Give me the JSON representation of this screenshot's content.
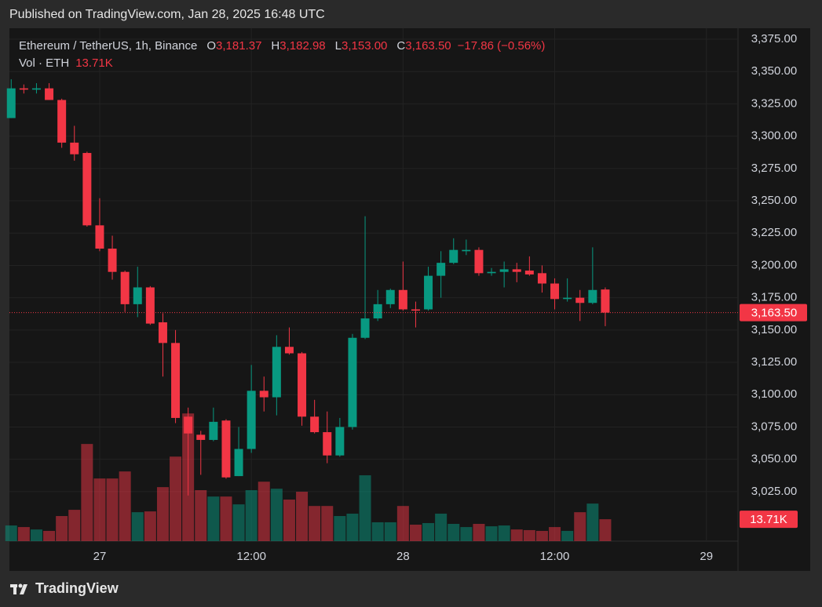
{
  "published": "Published on TradingView.com, Jan 28, 2025 16:48 UTC",
  "brand": "TradingView",
  "chart_data": {
    "type": "candlestick",
    "title": "Ethereum / TetherUS, 1h, Binance",
    "ohlc_legend": [
      {
        "key": "O",
        "value": "3,181.37"
      },
      {
        "key": "H",
        "value": "3,182.98"
      },
      {
        "key": "L",
        "value": "3,153.00"
      },
      {
        "key": "C",
        "value": "3,163.50"
      }
    ],
    "change": "−17.86 (−0.56%)",
    "volume_title": "Vol · ETH",
    "volume_label": "13.71K",
    "last_price_label": "3,163.50",
    "up_color": "#089981",
    "down_color": "#f23645",
    "grid": true,
    "x": [
      -7,
      -6,
      -5,
      -4,
      -3,
      -2,
      -1,
      0,
      1,
      2,
      3,
      4,
      5,
      6,
      7,
      8,
      9,
      10,
      11,
      12,
      13,
      14,
      15,
      16,
      17,
      18,
      19,
      20,
      21,
      22,
      23,
      24,
      25,
      26,
      27,
      28,
      29,
      30,
      31,
      32,
      33,
      34,
      35,
      36,
      37,
      38,
      39,
      40
    ],
    "open": [
      3314,
      3337,
      3336,
      3337,
      3328,
      3295,
      3287,
      3231,
      3213,
      3195,
      3170,
      3183,
      3156,
      3140,
      3083,
      3069,
      3065,
      3080,
      3037,
      3058,
      3103,
      3098,
      3137,
      3132,
      3083,
      3071,
      3053,
      3075,
      3144,
      3159,
      3170,
      3181,
      3166,
      3166,
      3192,
      3202,
      3211,
      3212,
      3194,
      3195,
      3197,
      3196,
      3194,
      3186,
      3174,
      3175,
      3171,
      3181.37
    ],
    "high": [
      3344,
      3340,
      3341,
      3341,
      3329,
      3308,
      3288,
      3252,
      3223,
      3196,
      3199,
      3184,
      3163,
      3150,
      3090,
      3072,
      3090,
      3081,
      3075,
      3123,
      3114,
      3146,
      3152,
      3133,
      3096,
      3087,
      3082,
      3147,
      3238,
      3181,
      3182,
      3203,
      3172,
      3199,
      3211,
      3221,
      3220,
      3214,
      3198,
      3203,
      3202,
      3207,
      3200,
      3190,
      3190,
      3181,
      3214,
      3182.98
    ],
    "low": [
      3314,
      3333,
      3333,
      3328,
      3291,
      3281,
      3230,
      3211,
      3189,
      3164,
      3160,
      3154,
      3114,
      3078,
      3022,
      3038,
      3064,
      3035,
      3037,
      3055,
      3087,
      3084,
      3131,
      3076,
      3070,
      3047,
      3052,
      3073,
      3143,
      3157,
      3167,
      3165,
      3152,
      3165,
      3175,
      3201,
      3208,
      3192,
      3192,
      3183,
      3187,
      3192,
      3179,
      3166,
      3172,
      3157,
      3170,
      3153
    ],
    "close": [
      3337,
      3336,
      3337,
      3328,
      3295,
      3286,
      3231,
      3213,
      3195,
      3170,
      3183,
      3155,
      3140,
      3082,
      3070,
      3065,
      3079,
      3036,
      3058,
      3103,
      3098,
      3137,
      3132,
      3083,
      3071,
      3053,
      3075,
      3144,
      3159,
      3170,
      3181,
      3166,
      3165,
      3192,
      3202,
      3212,
      3212,
      3194,
      3195,
      3197,
      3195,
      3193,
      3186,
      3174,
      3175,
      3171,
      3181,
      3163.5
    ],
    "volume": [
      9800,
      8800,
      7300,
      6400,
      15700,
      19600,
      60800,
      39200,
      39200,
      43600,
      18100,
      18600,
      33800,
      52900,
      79900,
      31900,
      27900,
      27900,
      23000,
      31900,
      37200,
      32800,
      26000,
      30900,
      22000,
      22000,
      15700,
      17200,
      41200,
      11800,
      11800,
      22000,
      10300,
      11300,
      17200,
      10800,
      8800,
      10800,
      9300,
      9800,
      7300,
      6900,
      6400,
      8800,
      6400,
      18100,
      23500,
      13710
    ],
    "volume_ylim": [
      0,
      80000
    ],
    "xlim": [
      -7.14,
      50.5
    ],
    "xticks": [
      {
        "value": 0,
        "label": "27"
      },
      {
        "value": 12,
        "label": "12:00"
      },
      {
        "value": 24,
        "label": "28"
      },
      {
        "value": 36,
        "label": "12:00"
      },
      {
        "value": 48,
        "label": "29"
      }
    ],
    "ylim": [
      2986.7,
      3383.5
    ],
    "yticks": [
      {
        "value": 3025,
        "label": "3,025.00"
      },
      {
        "value": 3050,
        "label": "3,050.00"
      },
      {
        "value": 3075,
        "label": "3,075.00"
      },
      {
        "value": 3100,
        "label": "3,100.00"
      },
      {
        "value": 3125,
        "label": "3,125.00"
      },
      {
        "value": 3150,
        "label": "3,150.00"
      },
      {
        "value": 3175,
        "label": "3,175.00"
      },
      {
        "value": 3200,
        "label": "3,200.00"
      },
      {
        "value": 3225,
        "label": "3,225.00"
      },
      {
        "value": 3250,
        "label": "3,250.00"
      },
      {
        "value": 3275,
        "label": "3,275.00"
      },
      {
        "value": 3300,
        "label": "3,300.00"
      },
      {
        "value": 3325,
        "label": "3,325.00"
      },
      {
        "value": 3350,
        "label": "3,350.00"
      },
      {
        "value": 3375,
        "label": "3,375.00"
      }
    ]
  }
}
